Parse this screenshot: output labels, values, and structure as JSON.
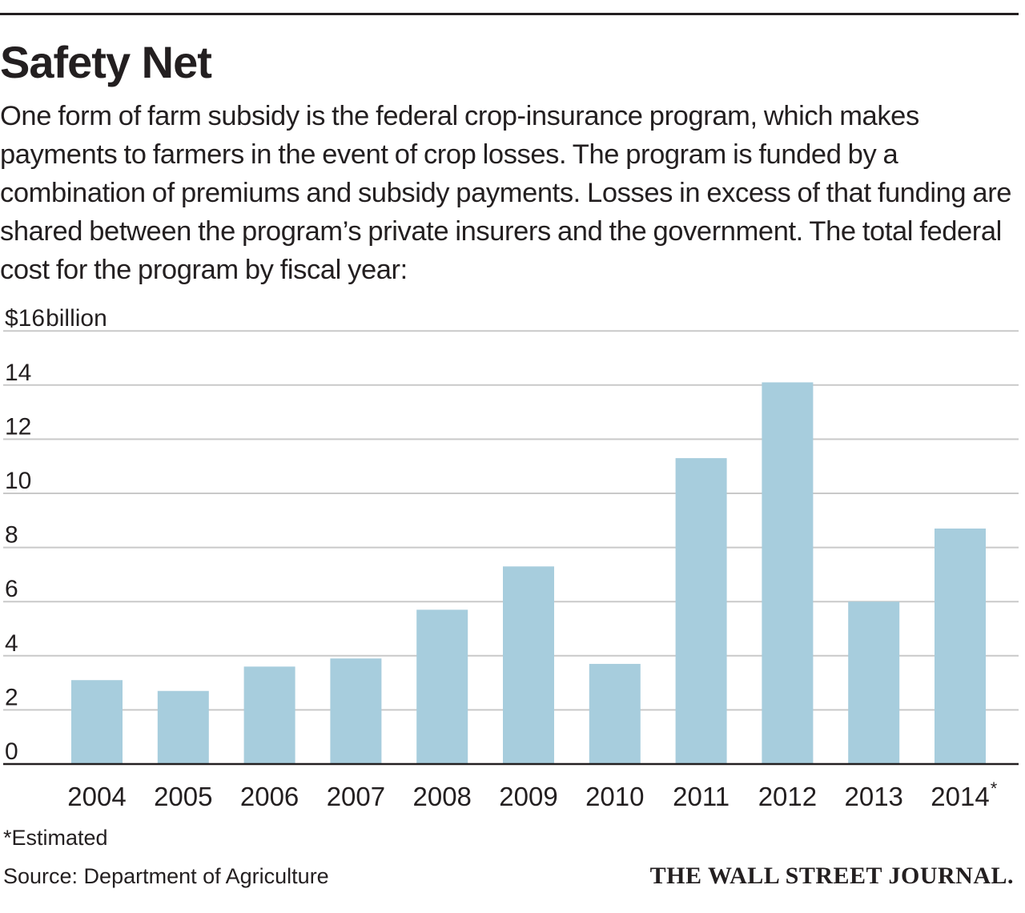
{
  "headline": "Safety Net",
  "dek": "One form of farm subsidy is the federal crop-insurance program, which makes payments to farmers in the event of crop losses. The program is funded by a combination of premiums and subsidy payments. Losses in excess of that funding are shared between the program’s private insurers and the government. The total federal cost for the program by fiscal year:",
  "footnote": "*Estimated",
  "source": "Source: Department of Agriculture",
  "brand": "THE WALL STREET JOURNAL.",
  "colors": {
    "bar": "#a7cddd",
    "gridline": "#c9c9c9",
    "axis": "#231f20",
    "text": "#231f20"
  },
  "chart_data": {
    "type": "bar",
    "title": "",
    "xlabel": "",
    "ylabel": "",
    "y_unit_label": "$16billion",
    "categories": [
      "2004",
      "2005",
      "2006",
      "2007",
      "2008",
      "2009",
      "2010",
      "2011",
      "2012",
      "2013",
      "2014"
    ],
    "category_marks": [
      "",
      "",
      "",
      "",
      "",
      "",
      "",
      "",
      "",
      "",
      "*"
    ],
    "values": [
      3.1,
      2.7,
      3.6,
      3.9,
      5.7,
      7.3,
      3.7,
      11.3,
      14.1,
      6.0,
      8.7
    ],
    "ylim": [
      0,
      16
    ],
    "y_ticks": [
      0,
      2,
      4,
      6,
      8,
      10,
      12,
      14,
      16
    ],
    "y_tick_labels": [
      "0",
      "2",
      "4",
      "6",
      "8",
      "10",
      "12",
      "14",
      "$16"
    ],
    "grid": true,
    "legend": "none"
  }
}
